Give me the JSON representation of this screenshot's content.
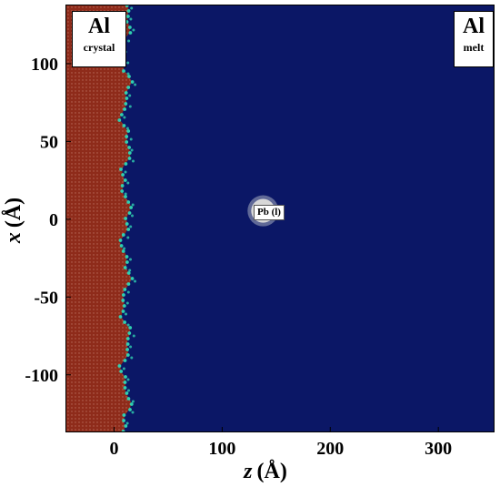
{
  "labels": {
    "crystal": {
      "element": "Al",
      "phase": "crystal"
    },
    "melt": {
      "element": "Al",
      "phase": "melt"
    },
    "droplet": "Pb (l)"
  },
  "axes": {
    "x_title_var": "z",
    "x_title_unit": "(Å)",
    "y_title_var": "x",
    "y_title_unit": "(Å)",
    "x_ticks": [
      "0",
      "100",
      "200",
      "300"
    ],
    "y_ticks": [
      "100",
      "50",
      "0",
      "-50",
      "-100"
    ],
    "x_range": [
      -45,
      352
    ],
    "y_range": [
      -137,
      138
    ]
  },
  "regions": {
    "crystal_z_max": 15,
    "droplet_center": {
      "z": 137,
      "x": 6
    },
    "droplet_radius": 11
  },
  "colors": {
    "crystal": "#8e2b1a",
    "melt": "#0b1766",
    "interface": "#2fd0b0",
    "droplet": "#d8d8d8",
    "background": "#ffffff"
  }
}
